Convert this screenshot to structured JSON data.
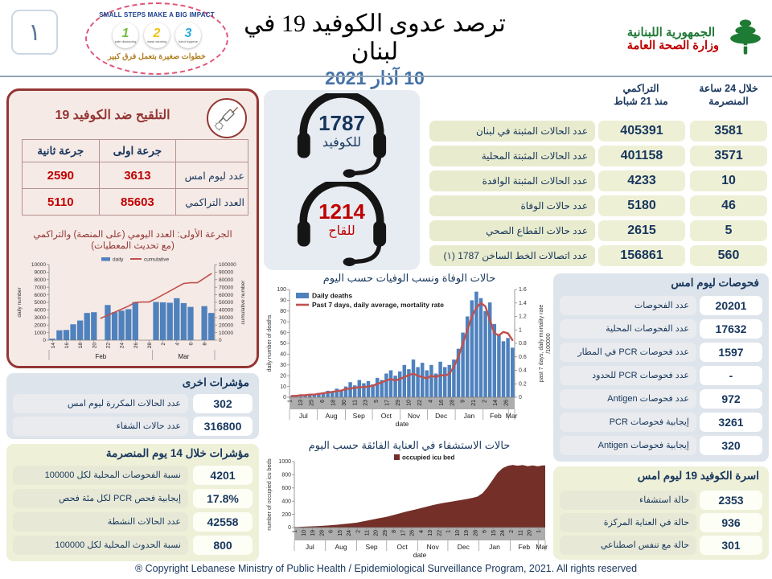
{
  "colors": {
    "navy": "#17365d",
    "red": "#c00000",
    "maroon": "#943634",
    "date_blue": "#4472a8",
    "bar_blue": "#4f81bd",
    "line_red": "#c0504d",
    "icu_maroon": "#732f28",
    "pill_green": "#eef0d6",
    "panel_blue": "#dde4eb",
    "panel_yellow": "#eef0d8"
  },
  "header": {
    "slide_number": "١",
    "poster": {
      "title": "SMALL STEPS MAKE A BIG IMPACT",
      "subtitle": "خطوات صغيرة بتعمل فرق كبير",
      "steps": [
        {
          "num": "1",
          "label": "safe distancing",
          "color": "#72bf44"
        },
        {
          "num": "2",
          "label": "mask wearing",
          "color": "#f0c419"
        },
        {
          "num": "3",
          "label": "hand hygiene",
          "color": "#29abe2"
        }
      ]
    },
    "title": "ترصد عدوى الكوفيد 19 في لبنان",
    "date": "10 آذار 2021",
    "ministry": {
      "line1": "الجمهورية اللبنانية",
      "line2": "وزارة الصحة العامة"
    }
  },
  "hotline": {
    "covid": {
      "number": "1787",
      "label": "للكوفيد"
    },
    "vaccine": {
      "number": "1214",
      "label": "للقاح"
    }
  },
  "daily_stats": {
    "col_24h": {
      "line1": "خلال 24 ساعة",
      "line2": "المنصرمة"
    },
    "col_cum": {
      "line1": "التراكمي",
      "line2": "منذ 21 شباط"
    },
    "rows": [
      {
        "label": "عدد الحالات المثبتة في لبنان",
        "last24h": "3581",
        "cumulative": "405391"
      },
      {
        "label": "عدد الحالات المثبتة المحلية",
        "last24h": "3571",
        "cumulative": "401158"
      },
      {
        "label": "عدد الحالات المثبتة الوافدة",
        "last24h": "10",
        "cumulative": "4233"
      },
      {
        "label": "عدد حالات الوفاة",
        "last24h": "46",
        "cumulative": "5180"
      },
      {
        "label": "عدد حالات القطاع الصحي",
        "last24h": "5",
        "cumulative": "2615"
      },
      {
        "label": "عدد اتصالات الخط الساخن 1787  (١)",
        "last24h": "560",
        "cumulative": "156861"
      }
    ]
  },
  "vaccination": {
    "title": "التلقيح ضد الكوفيد 19",
    "table": {
      "col_first": "جرعة اولى",
      "col_second": "جرعة ثانية",
      "rows": [
        {
          "label": "عدد ليوم امس",
          "first": "3613",
          "second": "2590"
        },
        {
          "label": "العدد التراكمي",
          "first": "85603",
          "second": "5110"
        }
      ]
    },
    "note_line1": "الجرعة الأولى: العدد اليومي (على المنصة) والتراكمي",
    "note_line2": "(مع تحديث المعطيات)"
  },
  "tests": {
    "title": "فحوصات ليوم امس",
    "rows": [
      {
        "label": "عدد الفحوصات",
        "value": "20201"
      },
      {
        "label": "عدد الفحوصات المحلية",
        "value": "17632"
      },
      {
        "label": "عدد فحوصات PCR في المطار",
        "value": "1597"
      },
      {
        "label": "عدد فحوصات PCR للحدود",
        "value": "-"
      },
      {
        "label": "عدد فحوصات Antigen",
        "value": "972"
      },
      {
        "label": "إيجابية فحوصات PCR",
        "value": "3261"
      },
      {
        "label": "إيجابية فحوصات Antigen",
        "value": "320"
      }
    ]
  },
  "beds": {
    "title": "اسرة الكوفيد 19 ليوم امس",
    "rows": [
      {
        "label": "حالة استشفاء",
        "value": "2353"
      },
      {
        "label": "حالة في العناية المركزة",
        "value": "936"
      },
      {
        "label": "حالة مع تنفس اصطناعي",
        "value": "301"
      }
    ]
  },
  "other_indicators": {
    "title": "مؤشرات اخرى",
    "rows": [
      {
        "label": "عدد الحالات المكررة  ليوم امس",
        "value": "302"
      },
      {
        "label": "عدد حالات الشفاء",
        "value": "316800"
      }
    ]
  },
  "indicators_14d": {
    "title": "مؤشرات خلال 14 يوم المنصرمة",
    "rows": [
      {
        "label": "نسبة الفحوصات  المحلية لكل 100000",
        "value": "4201"
      },
      {
        "label": "إيجابية فحص PCR لكل مئة فحص",
        "value": "17.8%"
      },
      {
        "label": "عدد الحالات النشطة",
        "value": "42558"
      },
      {
        "label": "نسبة الحدوث المحلية لكل 100000",
        "value": "800"
      }
    ]
  },
  "footer": "® Copyright Lebanese Ministry of Public Health / Epidemiological Surveillance Program, 2021. All rights reserved",
  "chart_data": [
    {
      "id": "vaccination",
      "type": "bar+line",
      "title": "",
      "legend": [
        "daily",
        "cumulative"
      ],
      "ylabel": "daily number",
      "ylabel2": "cumulative number",
      "ylim": [
        0,
        10000
      ],
      "ytick": 1000,
      "ylim2": [
        0,
        100000
      ],
      "ytick2": 10000,
      "step": 1,
      "values": [
        200,
        1300,
        1350,
        2100,
        2600,
        3600,
        3700,
        0,
        4650,
        3700,
        3900,
        4100,
        5050,
        0,
        0,
        5050,
        5000,
        4950,
        5550,
        4900,
        4400,
        0,
        4500,
        3600
      ],
      "line": [
        null,
        null,
        null,
        null,
        null,
        null,
        null,
        29000,
        33000,
        37000,
        41000,
        45000,
        50000,
        50500,
        50500,
        55000,
        60000,
        65000,
        70000,
        75000,
        76000,
        76000,
        82000,
        88000
      ],
      "xticks": [
        {
          "d": 0.5,
          "label": "14"
        },
        {
          "d": 2.5,
          "label": "16"
        },
        {
          "d": 4.5,
          "label": "18"
        },
        {
          "d": 6.5,
          "label": "20"
        },
        {
          "d": 8.5,
          "label": "22"
        },
        {
          "d": 10.5,
          "label": "24"
        },
        {
          "d": 12.5,
          "label": "26"
        },
        {
          "d": 14.5,
          "label": "28"
        },
        {
          "d": 16.5,
          "label": "2"
        },
        {
          "d": 18.5,
          "label": "4"
        },
        {
          "d": 20.5,
          "label": "6"
        },
        {
          "d": 22.5,
          "label": "8"
        }
      ],
      "months": [
        {
          "from": 0,
          "to": 15,
          "label": "Feb"
        },
        {
          "from": 15,
          "to": 24,
          "label": "Mar"
        }
      ],
      "color": "#4f81bd",
      "line_color": "#c0504d"
    },
    {
      "id": "deaths",
      "type": "bar+line",
      "title": "حالات الوفاة ونسب الوفيات حسب اليوم",
      "legend": [
        "Daily deaths",
        "Past 7 days, daily average, mortality rate"
      ],
      "ylabel": "daily number of deaths",
      "ylabel2": "past 7 days, daily mortality rate",
      "ylabel2b": "/100000",
      "xlabel": "date",
      "ylim": [
        0,
        100
      ],
      "ytick": 10,
      "ylim2": [
        0,
        1.6
      ],
      "ytick2": 0.2,
      "step": 5,
      "values": [
        1,
        2,
        1,
        2,
        3,
        2,
        4,
        3,
        6,
        5,
        8,
        7,
        10,
        14,
        11,
        16,
        13,
        15,
        12,
        18,
        16,
        22,
        25,
        20,
        24,
        30,
        26,
        35,
        28,
        32,
        25,
        30,
        22,
        33,
        28,
        30,
        35,
        45,
        60,
        75,
        90,
        98,
        92,
        80,
        88,
        68,
        58,
        52,
        55,
        46
      ],
      "line": [
        0.02,
        0.02,
        0.03,
        0.03,
        0.04,
        0.04,
        0.05,
        0.06,
        0.07,
        0.08,
        0.09,
        0.1,
        0.12,
        0.13,
        0.14,
        0.15,
        0.15,
        0.16,
        0.17,
        0.2,
        0.22,
        0.25,
        0.27,
        0.25,
        0.27,
        0.3,
        0.33,
        0.35,
        0.32,
        0.3,
        0.28,
        0.32,
        0.3,
        0.33,
        0.32,
        0.35,
        0.45,
        0.6,
        0.8,
        1.0,
        1.2,
        1.33,
        1.4,
        1.35,
        1.15,
        0.95,
        0.92,
        0.97,
        0.95,
        0.85
      ],
      "xticks": [
        {
          "d": 0,
          "label": "1"
        },
        {
          "d": 12,
          "label": "13"
        },
        {
          "d": 24,
          "label": "25"
        },
        {
          "d": 36,
          "label": "6"
        },
        {
          "d": 48,
          "label": "18"
        },
        {
          "d": 60,
          "label": "30"
        },
        {
          "d": 72,
          "label": "11"
        },
        {
          "d": 84,
          "label": "23"
        },
        {
          "d": 96,
          "label": "5"
        },
        {
          "d": 108,
          "label": "17"
        },
        {
          "d": 120,
          "label": "29"
        },
        {
          "d": 132,
          "label": "10"
        },
        {
          "d": 144,
          "label": "22"
        },
        {
          "d": 156,
          "label": "4"
        },
        {
          "d": 168,
          "label": "16"
        },
        {
          "d": 180,
          "label": "28"
        },
        {
          "d": 192,
          "label": "9"
        },
        {
          "d": 204,
          "label": "21"
        },
        {
          "d": 216,
          "label": "2"
        },
        {
          "d": 228,
          "label": "14"
        },
        {
          "d": 240,
          "label": "26"
        }
      ],
      "months": [
        {
          "from": 0,
          "to": 31,
          "label": "Jul"
        },
        {
          "from": 31,
          "to": 62,
          "label": "Aug"
        },
        {
          "from": 62,
          "to": 92,
          "label": "Sep"
        },
        {
          "from": 92,
          "to": 123,
          "label": "Oct"
        },
        {
          "from": 123,
          "to": 153,
          "label": "Nov"
        },
        {
          "from": 153,
          "to": 184,
          "label": "Dec"
        },
        {
          "from": 184,
          "to": 215,
          "label": "Jan"
        },
        {
          "from": 215,
          "to": 243,
          "label": "Feb"
        },
        {
          "from": 243,
          "to": 250,
          "label": "Mar"
        }
      ],
      "color": "#4f81bd",
      "line_color": "#c0504d"
    },
    {
      "id": "icu",
      "type": "area",
      "title": "حالات الاستشفاء في العناية الفائقة حسب اليوم",
      "legend": [
        "occupied icu bed"
      ],
      "ylabel": "number of occupied icu beds",
      "xlabel": "date",
      "ylim": [
        0,
        1000
      ],
      "ytick": 200,
      "step": 5,
      "values": [
        8,
        12,
        15,
        18,
        22,
        26,
        30,
        36,
        42,
        50,
        58,
        66,
        75,
        90,
        105,
        120,
        135,
        150,
        165,
        185,
        205,
        225,
        245,
        262,
        280,
        300,
        318,
        338,
        355,
        370,
        382,
        395,
        408,
        420,
        435,
        450,
        470,
        520,
        610,
        720,
        830,
        900,
        935,
        950,
        938,
        948,
        930,
        942,
        928,
        942
      ],
      "xticks": [
        {
          "d": 0,
          "label": "1"
        },
        {
          "d": 9,
          "label": "10"
        },
        {
          "d": 18,
          "label": "19"
        },
        {
          "d": 27,
          "label": "28"
        },
        {
          "d": 36,
          "label": "6"
        },
        {
          "d": 45,
          "label": "15"
        },
        {
          "d": 54,
          "label": "24"
        },
        {
          "d": 63,
          "label": "2"
        },
        {
          "d": 72,
          "label": "11"
        },
        {
          "d": 81,
          "label": "20"
        },
        {
          "d": 90,
          "label": "29"
        },
        {
          "d": 99,
          "label": "8"
        },
        {
          "d": 108,
          "label": "17"
        },
        {
          "d": 117,
          "label": "26"
        },
        {
          "d": 126,
          "label": "4"
        },
        {
          "d": 135,
          "label": "13"
        },
        {
          "d": 144,
          "label": "22"
        },
        {
          "d": 153,
          "label": "1"
        },
        {
          "d": 162,
          "label": "10"
        },
        {
          "d": 171,
          "label": "19"
        },
        {
          "d": 180,
          "label": "28"
        },
        {
          "d": 189,
          "label": "6"
        },
        {
          "d": 198,
          "label": "15"
        },
        {
          "d": 207,
          "label": "24"
        },
        {
          "d": 216,
          "label": "2"
        },
        {
          "d": 225,
          "label": "11"
        },
        {
          "d": 234,
          "label": "20"
        },
        {
          "d": 243,
          "label": "1"
        }
      ],
      "months": [
        {
          "from": 0,
          "to": 31,
          "label": "Jul"
        },
        {
          "from": 31,
          "to": 62,
          "label": "Aug"
        },
        {
          "from": 62,
          "to": 92,
          "label": "Sep"
        },
        {
          "from": 92,
          "to": 123,
          "label": "Oct"
        },
        {
          "from": 123,
          "to": 153,
          "label": "Nov"
        },
        {
          "from": 153,
          "to": 184,
          "label": "Dec"
        },
        {
          "from": 184,
          "to": 215,
          "label": "Jan"
        },
        {
          "from": 215,
          "to": 243,
          "label": "Feb"
        },
        {
          "from": 243,
          "to": 250,
          "label": "Mar"
        }
      ],
      "color": "#732f28"
    }
  ]
}
